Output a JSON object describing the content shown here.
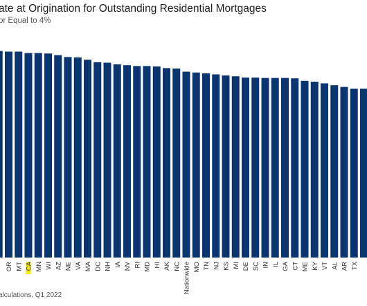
{
  "chart_data": {
    "type": "bar",
    "title": "ate at Origination for Outstanding Residential Mortgages",
    "subtitle": "or Equal to 4%",
    "source": "alculations, Q1 2022",
    "categories": [
      "OR",
      "MT",
      "CA",
      "MN",
      "WI",
      "AZ",
      "NE",
      "VA",
      "MA",
      "DC",
      "NH",
      "IA",
      "NV",
      "RI",
      "MD",
      "HI",
      "AK",
      "NC",
      "Nationwide",
      "MO",
      "TN",
      "NJ",
      "KS",
      "MI",
      "DE",
      "SC",
      "IN",
      "IL",
      "GA",
      "CT",
      "ME",
      "KY",
      "VT",
      "AL",
      "AR",
      "TX"
    ],
    "highlight_category": "CA",
    "values": [
      98.5,
      98.5,
      97.8,
      97.8,
      97.6,
      96.8,
      95.9,
      95.7,
      94.6,
      93.4,
      93.2,
      92.4,
      92.0,
      91.6,
      91.6,
      91.4,
      90.6,
      90.4,
      88.9,
      88.5,
      88.1,
      87.6,
      87.1,
      86.7,
      86.1,
      86.1,
      85.9,
      85.9,
      85.9,
      85.7,
      84.5,
      84.1,
      83.3,
      82.4,
      81.6,
      80.8
    ],
    "partial_bar_left_value": 98.8,
    "partial_bar_right_value": 80.8,
    "bar_color": "#0b3570",
    "highlight_color": "#f2e600",
    "ylim": [
      0,
      100
    ],
    "grid": false,
    "legend": "none"
  }
}
